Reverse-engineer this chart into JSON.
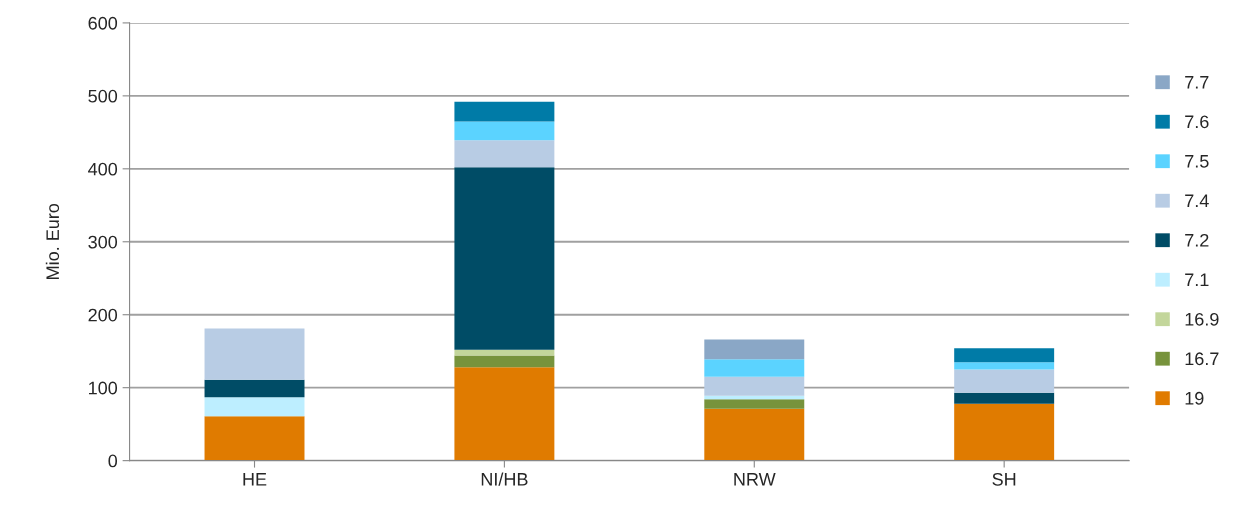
{
  "chart_data": {
    "type": "bar",
    "stacked": true,
    "ylabel": "Mio. Euro",
    "categories": [
      "HE",
      "NI/HB",
      "NRW",
      "SH"
    ],
    "series": [
      {
        "name": "19",
        "color": "#e07b00",
        "values": [
          61,
          128,
          71,
          78
        ]
      },
      {
        "name": "16.7",
        "color": "#77933c",
        "values": [
          0,
          16,
          13,
          0
        ]
      },
      {
        "name": "16.9",
        "color": "#c3d69b",
        "values": [
          0,
          8,
          0,
          0
        ]
      },
      {
        "name": "7.1",
        "color": "#bdeeff",
        "values": [
          26,
          null,
          5,
          0
        ]
      },
      {
        "name": "7.2",
        "color": "#004c66",
        "values": [
          24,
          250,
          0,
          15
        ]
      },
      {
        "name": "7.4",
        "color": "#b8cce4",
        "values": [
          70,
          37,
          26,
          32
        ]
      },
      {
        "name": "7.5",
        "color": "#5bd3ff",
        "values": [
          0,
          26,
          24,
          10
        ]
      },
      {
        "name": "7.6",
        "color": "#007ba7",
        "values": [
          0,
          27,
          0,
          19
        ]
      },
      {
        "name": "7.7",
        "color": "#8aa7c6",
        "values": [
          0,
          0,
          27,
          0
        ]
      }
    ],
    "ylim": [
      0,
      600
    ],
    "yticks": [
      0,
      100,
      200,
      300,
      400,
      500,
      600
    ],
    "grid": "y",
    "legend": "right"
  }
}
